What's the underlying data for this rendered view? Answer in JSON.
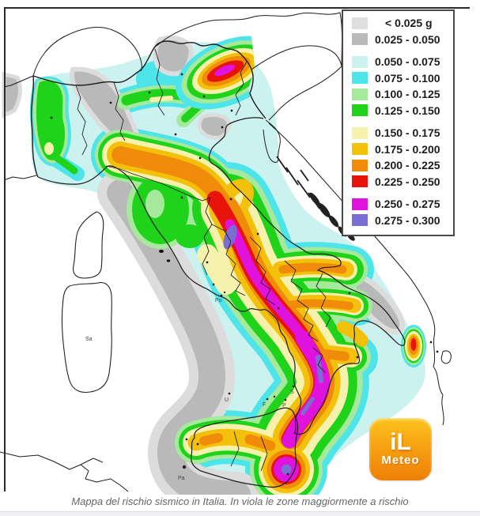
{
  "page": {
    "caption": "Mappa del rischio sismico in Italia. In viola le zone maggiormente a rischio"
  },
  "legend": {
    "groups": [
      [
        {
          "label": "< 0.025 g",
          "color": "#dedede"
        },
        {
          "label": "0.025 - 0.050",
          "color": "#b9b9b9"
        }
      ],
      [
        {
          "label": "0.050 - 0.075",
          "color": "#cbf2ee"
        },
        {
          "label": "0.075 - 0.100",
          "color": "#4de4ea"
        },
        {
          "label": "0.100 - 0.125",
          "color": "#a6e89c"
        },
        {
          "label": "0.125 - 0.150",
          "color": "#1ed319"
        }
      ],
      [
        {
          "label": "0.150 - 0.175",
          "color": "#f6f2ad"
        },
        {
          "label": "0.175 - 0.200",
          "color": "#f3c00b"
        },
        {
          "label": "0.200 - 0.225",
          "color": "#f08c0a"
        },
        {
          "label": "0.225 - 0.250",
          "color": "#e8130b"
        }
      ],
      [
        {
          "label": "0.250 - 0.275",
          "color": "#e012dd"
        },
        {
          "label": "0.275 - 0.300",
          "color": "#7a6ed2"
        }
      ]
    ]
  },
  "logo": {
    "top": "iL",
    "bottom": "Meteo"
  },
  "map_labels": {
    "sa": "Sa",
    "po": "Po",
    "u": "U",
    "s": "S",
    "f": "F",
    "p": "P",
    "pa": "Pa"
  }
}
